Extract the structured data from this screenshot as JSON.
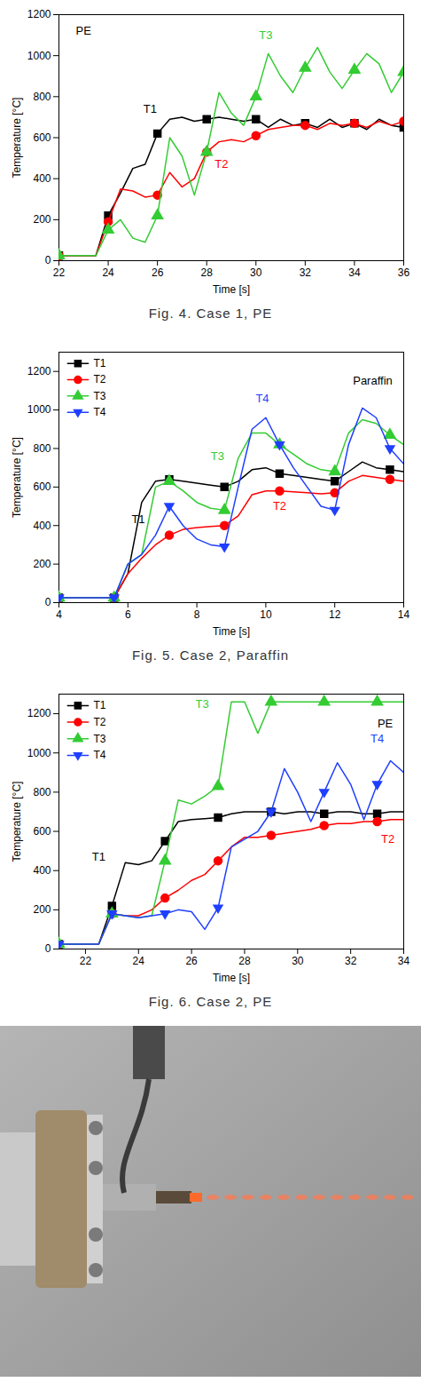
{
  "chart_data": [
    {
      "type": "line",
      "caption": "Fig. 4. Case 1, PE",
      "x_label": "Time [s]",
      "y_label": "Temperature [°C]",
      "xlim": [
        22,
        36
      ],
      "xticks": [
        22,
        24,
        26,
        28,
        30,
        32,
        34,
        36
      ],
      "ylim": [
        0,
        1200
      ],
      "yticks": [
        0,
        200,
        400,
        600,
        800,
        1000,
        1200
      ],
      "grid": false,
      "x": [
        22,
        22.5,
        23,
        23.5,
        24,
        24.5,
        25,
        25.5,
        26,
        26.5,
        27,
        27.5,
        28,
        28.5,
        29,
        29.5,
        30,
        30.5,
        31,
        31.5,
        32,
        32.5,
        33,
        33.5,
        34,
        34.5,
        35,
        35.5,
        36
      ],
      "series": [
        {
          "name": "T1",
          "color": "#000000",
          "marker": "square",
          "values": [
            25,
            25,
            25,
            25,
            220,
            330,
            450,
            470,
            620,
            690,
            700,
            680,
            690,
            700,
            690,
            680,
            690,
            650,
            690,
            660,
            670,
            650,
            690,
            650,
            670,
            640,
            690,
            660,
            650
          ]
        },
        {
          "name": "T2",
          "color": "#ff0000",
          "marker": "circle",
          "values": [
            25,
            25,
            25,
            25,
            190,
            350,
            340,
            310,
            320,
            430,
            360,
            400,
            530,
            580,
            590,
            580,
            610,
            640,
            650,
            660,
            660,
            640,
            670,
            660,
            670,
            650,
            680,
            660,
            680
          ]
        },
        {
          "name": "T3",
          "color": "#33cc33",
          "marker": "triangle",
          "values": [
            25,
            25,
            25,
            25,
            150,
            200,
            110,
            90,
            220,
            600,
            510,
            320,
            530,
            820,
            720,
            660,
            800,
            1010,
            900,
            820,
            940,
            1040,
            920,
            840,
            930,
            1010,
            960,
            820,
            920
          ]
        }
      ],
      "annotations": [
        {
          "text": "PE",
          "x": 23,
          "y": 1120
        },
        {
          "text": "T1",
          "x": 25.7,
          "y": 740
        },
        {
          "text": "T2",
          "x": 28.6,
          "y": 470
        },
        {
          "text": "T3",
          "x": 30.4,
          "y": 1100
        }
      ]
    },
    {
      "type": "line",
      "caption": "Fig. 5. Case 2, Paraffin",
      "x_label": "Time [s]",
      "y_label": "Temperature [°C]",
      "xlim": [
        4,
        14
      ],
      "xticks": [
        4,
        6,
        8,
        10,
        12,
        14
      ],
      "ylim": [
        0,
        1300
      ],
      "yticks": [
        0,
        200,
        400,
        600,
        800,
        1000,
        1200
      ],
      "grid": false,
      "legend": "top-left",
      "x": [
        4,
        4.4,
        4.8,
        5.2,
        5.6,
        6.0,
        6.4,
        6.8,
        7.2,
        7.6,
        8.0,
        8.4,
        8.8,
        9.2,
        9.6,
        10.0,
        10.4,
        10.8,
        11.2,
        11.6,
        12.0,
        12.4,
        12.8,
        13.2,
        13.6,
        14.0
      ],
      "series": [
        {
          "name": "T1",
          "color": "#000000",
          "marker": "square",
          "values": [
            25,
            25,
            25,
            25,
            25,
            150,
            520,
            630,
            640,
            630,
            620,
            610,
            600,
            630,
            690,
            700,
            670,
            660,
            650,
            640,
            630,
            680,
            730,
            700,
            690,
            680
          ]
        },
        {
          "name": "T2",
          "color": "#ff0000",
          "marker": "circle",
          "values": [
            25,
            25,
            25,
            25,
            25,
            150,
            230,
            300,
            350,
            380,
            390,
            395,
            400,
            450,
            560,
            580,
            580,
            575,
            570,
            565,
            570,
            630,
            660,
            650,
            640,
            630
          ]
        },
        {
          "name": "T3",
          "color": "#33cc33",
          "marker": "triangle",
          "values": [
            25,
            25,
            25,
            25,
            25,
            200,
            250,
            600,
            630,
            580,
            520,
            490,
            480,
            750,
            880,
            880,
            820,
            770,
            720,
            690,
            680,
            880,
            950,
            930,
            870,
            820
          ]
        },
        {
          "name": "T4",
          "color": "#1f3fff",
          "marker": "triangle-down",
          "values": [
            25,
            25,
            25,
            25,
            25,
            200,
            250,
            350,
            500,
            400,
            330,
            300,
            290,
            600,
            900,
            960,
            820,
            700,
            600,
            500,
            480,
            820,
            1010,
            960,
            800,
            720
          ]
        }
      ],
      "annotations": [
        {
          "text": "Paraffin",
          "x": 13.1,
          "y": 1150
        },
        {
          "text": "T1",
          "x": 6.3,
          "y": 430
        },
        {
          "text": "T2",
          "x": 10.4,
          "y": 500
        },
        {
          "text": "T3",
          "x": 8.6,
          "y": 760
        },
        {
          "text": "T4",
          "x": 9.9,
          "y": 1060
        }
      ]
    },
    {
      "type": "line",
      "caption": "Fig. 6. Case 2, PE",
      "x_label": "Time [s]",
      "y_label": "Temperature [°C]",
      "xlim": [
        21,
        34
      ],
      "xticks": [
        22,
        24,
        26,
        28,
        30,
        32,
        34
      ],
      "ylim": [
        0,
        1300
      ],
      "yticks": [
        0,
        200,
        400,
        600,
        800,
        1000,
        1200
      ],
      "grid": false,
      "legend": "top-left",
      "x": [
        21,
        21.5,
        22,
        22.5,
        23,
        23.5,
        24,
        24.5,
        25,
        25.5,
        26,
        26.5,
        27,
        27.5,
        28,
        28.5,
        29,
        29.5,
        30,
        30.5,
        31,
        31.5,
        32,
        32.5,
        33,
        33.5,
        34
      ],
      "series": [
        {
          "name": "T1",
          "color": "#000000",
          "marker": "square",
          "values": [
            25,
            25,
            25,
            25,
            220,
            440,
            430,
            450,
            550,
            650,
            660,
            665,
            670,
            690,
            700,
            700,
            700,
            690,
            700,
            700,
            690,
            700,
            700,
            690,
            690,
            700,
            700
          ]
        },
        {
          "name": "T2",
          "color": "#ff0000",
          "marker": "circle",
          "values": [
            25,
            25,
            25,
            25,
            180,
            170,
            170,
            200,
            260,
            300,
            350,
            380,
            450,
            520,
            570,
            570,
            580,
            590,
            600,
            610,
            630,
            640,
            640,
            650,
            650,
            660,
            660
          ]
        },
        {
          "name": "T3",
          "color": "#33cc33",
          "marker": "triangle",
          "values": [
            25,
            25,
            25,
            25,
            180,
            170,
            160,
            170,
            450,
            760,
            740,
            780,
            830,
            1260,
            1260,
            1100,
            1260,
            1260,
            1260,
            1260,
            1260,
            1260,
            1260,
            1260,
            1260,
            1260,
            1260
          ]
        },
        {
          "name": "T4",
          "color": "#1f3fff",
          "marker": "triangle-down",
          "values": [
            25,
            25,
            25,
            25,
            180,
            170,
            160,
            170,
            180,
            200,
            190,
            100,
            210,
            520,
            560,
            600,
            700,
            920,
            800,
            650,
            800,
            950,
            840,
            660,
            840,
            960,
            900
          ]
        }
      ],
      "annotations": [
        {
          "text": "PE",
          "x": 33.3,
          "y": 1150
        },
        {
          "text": "T1",
          "x": 22.5,
          "y": 470
        },
        {
          "text": "T2",
          "x": 33.4,
          "y": 560
        },
        {
          "text": "T3",
          "x": 26.4,
          "y": 1250
        },
        {
          "text": "T4",
          "x": 33.0,
          "y": 1070
        }
      ]
    }
  ]
}
